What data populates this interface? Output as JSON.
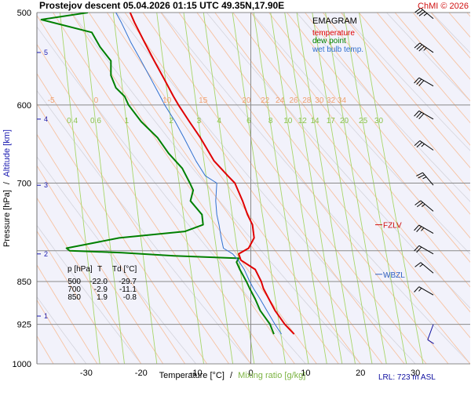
{
  "header": {
    "title": "Prostejov  descent  05.04.2026 01:15 UTC  49.35N,17.90E",
    "copyright": "ChMI © 2026"
  },
  "legend": {
    "title": "EMAGRAM",
    "items": [
      {
        "label": "temperature",
        "color": "#e00000"
      },
      {
        "label": "dew point",
        "color": "#008000"
      },
      {
        "label": "wet bulb temp.",
        "color": "#3070d0"
      }
    ]
  },
  "axes": {
    "ylabel_pressure": "Pressure [hPa]",
    "ylabel_sep": "/",
    "ylabel_altitude": "Altitude [km]",
    "xlabel_temperature": "Temperature [°C]",
    "xlabel_sep": "/",
    "xlabel_mixing": "Mixing ratio [g/kg]"
  },
  "table": {
    "headers": [
      "p [hPa]",
      "T",
      "Td [°C]"
    ],
    "rows": [
      [
        "500",
        "-22.0",
        "-29.7"
      ],
      [
        "700",
        "-2.9",
        "-11.1"
      ],
      [
        "850",
        "1.9",
        "-0.8"
      ]
    ]
  },
  "levels": {
    "fzlv": {
      "label": "FZLV",
      "pressure": 760,
      "color": "#d01010"
    },
    "wbzl": {
      "label": "WBZL",
      "pressure": 838,
      "color": "#3060c0"
    }
  },
  "footer": {
    "lrl": "LRL: 723 m ASL"
  },
  "chart_data": {
    "type": "line",
    "title": "EMAGRAM",
    "xlabel": "Temperature [°C]",
    "ylabel": "Pressure [hPa]",
    "xlim": [
      -39,
      40
    ],
    "ylim": [
      1000,
      500
    ],
    "pressure_ticks": [
      500,
      600,
      700,
      850,
      925,
      1000
    ],
    "pressure_gridlines": [
      500,
      600,
      700,
      800,
      850,
      925,
      1000
    ],
    "temperature_ticks": [
      -30,
      -20,
      -10,
      0,
      10,
      20,
      30
    ],
    "altitude_ticks": [
      {
        "label": "1",
        "p": 910
      },
      {
        "label": "2",
        "p": 805
      },
      {
        "label": "3",
        "p": 703
      },
      {
        "label": "4",
        "p": 617
      },
      {
        "label": "5",
        "p": 541
      }
    ],
    "mixing_ratio_labels": [
      "0.4",
      "0.6",
      "1",
      "2",
      "3",
      "4",
      "6",
      "8",
      "10",
      "12",
      "14",
      "17",
      "20",
      "25",
      "30"
    ],
    "mixing_ratio_values": [
      0.4,
      0.6,
      1,
      2,
      3,
      4,
      6,
      8,
      10,
      12,
      14,
      17,
      20,
      25,
      30
    ],
    "theta_labels": [
      "-5",
      "0",
      "10",
      "15",
      "20",
      "22",
      "24",
      "26",
      "28",
      "30",
      "32",
      "34"
    ],
    "theta_label_temps": [
      -36.4,
      -28.2,
      -15.3,
      -8.7,
      -0.8,
      2.6,
      5.3,
      7.8,
      10.2,
      12.5,
      14.6,
      16.6
    ],
    "theta_label_pressure": 600,
    "mixing_label_pressure": 623,
    "series": [
      {
        "name": "temperature",
        "color": "#e00000",
        "points": [
          [
            943,
            7.9
          ],
          [
            925,
            6.2
          ],
          [
            900,
            4.4
          ],
          [
            880,
            3.3
          ],
          [
            862,
            2.3
          ],
          [
            850,
            1.9
          ],
          [
            830,
            0.8
          ],
          [
            815,
            -1.8
          ],
          [
            805,
            -2.2
          ],
          [
            796,
            -0.4
          ],
          [
            780,
            0.6
          ],
          [
            760,
            0.3
          ],
          [
            745,
            -0.6
          ],
          [
            725,
            -1.5
          ],
          [
            700,
            -2.9
          ],
          [
            690,
            -4.2
          ],
          [
            670,
            -6.7
          ],
          [
            640,
            -9.2
          ],
          [
            620,
            -11.2
          ],
          [
            600,
            -13.2
          ],
          [
            590,
            -14.1
          ],
          [
            570,
            -15.8
          ],
          [
            550,
            -17.6
          ],
          [
            530,
            -19.4
          ],
          [
            510,
            -21.2
          ],
          [
            500,
            -22.0
          ]
        ]
      },
      {
        "name": "dew point",
        "color": "#008000",
        "points": [
          [
            943,
            4.2
          ],
          [
            925,
            3.5
          ],
          [
            900,
            1.7
          ],
          [
            880,
            0.8
          ],
          [
            862,
            -0.2
          ],
          [
            850,
            -0.8
          ],
          [
            830,
            -2.0
          ],
          [
            818,
            -2.6
          ],
          [
            812,
            -2.2
          ],
          [
            808,
            -14.0
          ],
          [
            803,
            -23.5
          ],
          [
            800,
            -33.0
          ],
          [
            796,
            -33.6
          ],
          [
            790,
            -30.0
          ],
          [
            780,
            -24.0
          ],
          [
            770,
            -12.0
          ],
          [
            760,
            -8.7
          ],
          [
            745,
            -8.9
          ],
          [
            725,
            -11.0
          ],
          [
            710,
            -10.5
          ],
          [
            700,
            -11.1
          ],
          [
            690,
            -11.8
          ],
          [
            680,
            -12.5
          ],
          [
            660,
            -15.0
          ],
          [
            640,
            -17.0
          ],
          [
            620,
            -20.0
          ],
          [
            600,
            -22.3
          ],
          [
            590,
            -23.0
          ],
          [
            580,
            -24.6
          ],
          [
            566,
            -25.5
          ],
          [
            550,
            -25.5
          ],
          [
            535,
            -27.5
          ],
          [
            520,
            -29.0
          ],
          [
            507,
            -38.2
          ],
          [
            500,
            -29.7
          ]
        ]
      },
      {
        "name": "wet bulb temp.",
        "color": "#3070d0",
        "points": [
          [
            943,
            5.6
          ],
          [
            925,
            4.4
          ],
          [
            900,
            2.9
          ],
          [
            880,
            1.7
          ],
          [
            862,
            0.5
          ],
          [
            850,
            -0.2
          ],
          [
            830,
            -1.2
          ],
          [
            815,
            -2.3
          ],
          [
            805,
            -3.3
          ],
          [
            796,
            -5.0
          ],
          [
            780,
            -5.4
          ],
          [
            760,
            -5.8
          ],
          [
            745,
            -6.2
          ],
          [
            725,
            -6.4
          ],
          [
            700,
            -6.2
          ],
          [
            690,
            -8.3
          ],
          [
            670,
            -10.0
          ],
          [
            640,
            -12.2
          ],
          [
            620,
            -13.8
          ],
          [
            600,
            -15.7
          ],
          [
            590,
            -16.5
          ],
          [
            570,
            -18.2
          ],
          [
            550,
            -20.0
          ],
          [
            530,
            -21.9
          ],
          [
            510,
            -23.6
          ],
          [
            500,
            -24.6
          ]
        ]
      }
    ],
    "wind_barbs": [
      {
        "p": 506,
        "dir": 310,
        "speed": 35
      },
      {
        "p": 541,
        "dir": 305,
        "speed": 35
      },
      {
        "p": 578,
        "dir": 300,
        "speed": 30
      },
      {
        "p": 617,
        "dir": 300,
        "speed": 30
      },
      {
        "p": 656,
        "dir": 305,
        "speed": 25
      },
      {
        "p": 703,
        "dir": 320,
        "speed": 25
      },
      {
        "p": 740,
        "dir": 310,
        "speed": 25
      },
      {
        "p": 773,
        "dir": 300,
        "speed": 25
      },
      {
        "p": 805,
        "dir": 300,
        "speed": 20
      },
      {
        "p": 836,
        "dir": 310,
        "speed": 15
      },
      {
        "p": 873,
        "dir": 300,
        "speed": 15
      },
      {
        "p": 925,
        "dir": 200,
        "speed": 10
      }
    ]
  }
}
